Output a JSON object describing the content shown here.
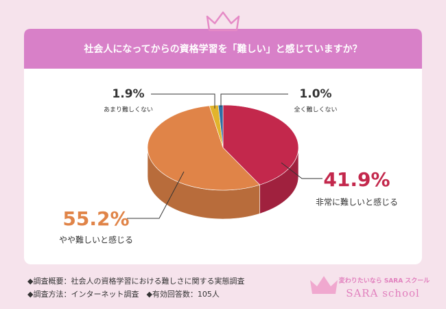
{
  "chart_data": {
    "type": "pie",
    "title": "社会人になってからの資格学習を「難しい」と感じていますか？",
    "categories": [
      "非常に難しいと感じる",
      "やや難しいと感じる",
      "あまり難しくない",
      "全く難しくない"
    ],
    "values": [
      41.9,
      55.2,
      1.9,
      1.0
    ],
    "value_labels": [
      "41.9%",
      "55.2%",
      "1.9%",
      "1.0%"
    ],
    "colors": [
      "#c3284c",
      "#e08448",
      "#e2b42c",
      "#2f6ea6"
    ]
  },
  "notes": [
    "◆調査概要：社会人の資格学習における難しさに関する実態調査",
    "◆調査方法：インターネット調査　◆有効回答数：105人"
  ],
  "brand": {
    "tagline": "変わりたいなら SARA スクール",
    "name": "SARA school"
  }
}
